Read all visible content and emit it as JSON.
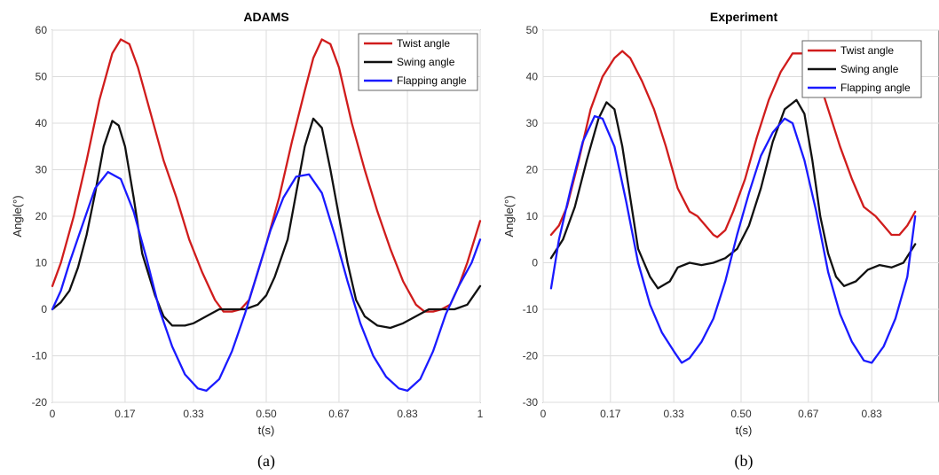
{
  "chart_data": [
    {
      "type": "line",
      "panel_label": "(a)",
      "title": "ADAMS",
      "xlabel": "t(s)",
      "ylabel": "Angle(°)",
      "xlim": [
        0,
        1
      ],
      "ylim": [
        -20,
        60
      ],
      "xticks": [
        0,
        0.17,
        0.33,
        0.5,
        0.67,
        0.83,
        1
      ],
      "xtick_labels": [
        "0",
        "0.17",
        "0.33",
        "0.50",
        "0.67",
        "0.83",
        "1"
      ],
      "yticks": [
        -20,
        -10,
        0,
        10,
        20,
        30,
        40,
        50,
        60
      ],
      "ytick_labels": [
        "-20",
        "-10",
        "0",
        "10",
        "20",
        "30",
        "40",
        "50",
        "60"
      ],
      "grid": true,
      "legend_position": "top-right",
      "series": [
        {
          "name": "Twist angle",
          "color": "#d01c1c",
          "points": [
            [
              0,
              5
            ],
            [
              0.02,
              10
            ],
            [
              0.05,
              20
            ],
            [
              0.08,
              32
            ],
            [
              0.11,
              45
            ],
            [
              0.14,
              55
            ],
            [
              0.16,
              58
            ],
            [
              0.18,
              57
            ],
            [
              0.2,
              52
            ],
            [
              0.23,
              42
            ],
            [
              0.26,
              32
            ],
            [
              0.29,
              24
            ],
            [
              0.32,
              15
            ],
            [
              0.35,
              8
            ],
            [
              0.38,
              2
            ],
            [
              0.4,
              -0.5
            ],
            [
              0.42,
              -0.5
            ],
            [
              0.44,
              0
            ],
            [
              0.46,
              2
            ],
            [
              0.48,
              8
            ],
            [
              0.5,
              14
            ],
            [
              0.53,
              24
            ],
            [
              0.56,
              36
            ],
            [
              0.59,
              47
            ],
            [
              0.61,
              54
            ],
            [
              0.63,
              58
            ],
            [
              0.65,
              57
            ],
            [
              0.67,
              52
            ],
            [
              0.7,
              40
            ],
            [
              0.73,
              30
            ],
            [
              0.76,
              21
            ],
            [
              0.79,
              13
            ],
            [
              0.82,
              6
            ],
            [
              0.85,
              1
            ],
            [
              0.87,
              -0.5
            ],
            [
              0.89,
              -0.5
            ],
            [
              0.91,
              0
            ],
            [
              0.93,
              1
            ],
            [
              0.95,
              5
            ],
            [
              0.97,
              10
            ],
            [
              1,
              19
            ]
          ]
        },
        {
          "name": "Swing angle",
          "color": "#111111",
          "points": [
            [
              0,
              0
            ],
            [
              0.02,
              1.5
            ],
            [
              0.04,
              4
            ],
            [
              0.06,
              9
            ],
            [
              0.08,
              16
            ],
            [
              0.1,
              25
            ],
            [
              0.12,
              35
            ],
            [
              0.14,
              40.5
            ],
            [
              0.155,
              39.5
            ],
            [
              0.17,
              35
            ],
            [
              0.19,
              24
            ],
            [
              0.21,
              12
            ],
            [
              0.24,
              3
            ],
            [
              0.26,
              -1.5
            ],
            [
              0.28,
              -3.5
            ],
            [
              0.31,
              -3.5
            ],
            [
              0.33,
              -3
            ],
            [
              0.35,
              -2
            ],
            [
              0.37,
              -1
            ],
            [
              0.39,
              0
            ],
            [
              0.42,
              0
            ],
            [
              0.45,
              0
            ],
            [
              0.48,
              1
            ],
            [
              0.5,
              3
            ],
            [
              0.52,
              7
            ],
            [
              0.55,
              15
            ],
            [
              0.57,
              25
            ],
            [
              0.59,
              35
            ],
            [
              0.61,
              41
            ],
            [
              0.63,
              39
            ],
            [
              0.65,
              30
            ],
            [
              0.67,
              20
            ],
            [
              0.69,
              10
            ],
            [
              0.71,
              2
            ],
            [
              0.73,
              -1.5
            ],
            [
              0.76,
              -3.5
            ],
            [
              0.79,
              -4
            ],
            [
              0.82,
              -3
            ],
            [
              0.85,
              -1.5
            ],
            [
              0.88,
              0
            ],
            [
              0.91,
              0
            ],
            [
              0.94,
              0
            ],
            [
              0.97,
              1
            ],
            [
              1,
              5
            ]
          ]
        },
        {
          "name": "Flapping angle",
          "color": "#1a1aff",
          "points": [
            [
              0,
              0
            ],
            [
              0.02,
              4
            ],
            [
              0.04,
              10
            ],
            [
              0.07,
              18
            ],
            [
              0.1,
              26
            ],
            [
              0.13,
              29.5
            ],
            [
              0.16,
              28
            ],
            [
              0.19,
              21
            ],
            [
              0.22,
              11
            ],
            [
              0.25,
              0
            ],
            [
              0.28,
              -8
            ],
            [
              0.31,
              -14
            ],
            [
              0.34,
              -17
            ],
            [
              0.36,
              -17.5
            ],
            [
              0.39,
              -15
            ],
            [
              0.42,
              -9
            ],
            [
              0.45,
              -1
            ],
            [
              0.48,
              8
            ],
            [
              0.51,
              17
            ],
            [
              0.54,
              24
            ],
            [
              0.57,
              28.5
            ],
            [
              0.6,
              29
            ],
            [
              0.63,
              25
            ],
            [
              0.66,
              16
            ],
            [
              0.69,
              6
            ],
            [
              0.72,
              -3
            ],
            [
              0.75,
              -10
            ],
            [
              0.78,
              -14.5
            ],
            [
              0.81,
              -17
            ],
            [
              0.83,
              -17.5
            ],
            [
              0.86,
              -15
            ],
            [
              0.89,
              -9
            ],
            [
              0.92,
              -1
            ],
            [
              0.95,
              5
            ],
            [
              0.98,
              10
            ],
            [
              1,
              15
            ]
          ]
        }
      ]
    },
    {
      "type": "line",
      "panel_label": "(b)",
      "title": "Experiment",
      "xlabel": "t(s)",
      "ylabel": "Angle(°)",
      "xlim": [
        0,
        1
      ],
      "ylim": [
        -30,
        50
      ],
      "xticks": [
        0,
        0.17,
        0.33,
        0.5,
        0.67,
        0.83
      ],
      "xtick_labels": [
        "0",
        "0.17",
        "0.33",
        "0.50",
        "0.67",
        "0.83"
      ],
      "yticks": [
        -30,
        -20,
        -10,
        0,
        10,
        20,
        30,
        40,
        50
      ],
      "ytick_labels": [
        "-30",
        "-20",
        "-10",
        "0",
        "10",
        "20",
        "30",
        "40",
        "50"
      ],
      "grid": true,
      "legend_position": "top-right",
      "series": [
        {
          "name": "Twist angle",
          "color": "#d01c1c",
          "points": [
            [
              0.02,
              6
            ],
            [
              0.04,
              8
            ],
            [
              0.06,
              12
            ],
            [
              0.09,
              22
            ],
            [
              0.12,
              33
            ],
            [
              0.15,
              40
            ],
            [
              0.18,
              44
            ],
            [
              0.2,
              45.5
            ],
            [
              0.22,
              44
            ],
            [
              0.25,
              39
            ],
            [
              0.28,
              33
            ],
            [
              0.31,
              25
            ],
            [
              0.34,
              16
            ],
            [
              0.37,
              11
            ],
            [
              0.39,
              10
            ],
            [
              0.41,
              8
            ],
            [
              0.43,
              6
            ],
            [
              0.44,
              5.5
            ],
            [
              0.46,
              7
            ],
            [
              0.48,
              11
            ],
            [
              0.51,
              18
            ],
            [
              0.54,
              27
            ],
            [
              0.57,
              35
            ],
            [
              0.6,
              41
            ],
            [
              0.63,
              45
            ],
            [
              0.66,
              45
            ],
            [
              0.69,
              41
            ],
            [
              0.72,
              33
            ],
            [
              0.75,
              25
            ],
            [
              0.78,
              18
            ],
            [
              0.81,
              12
            ],
            [
              0.84,
              10
            ],
            [
              0.86,
              8
            ],
            [
              0.88,
              6
            ],
            [
              0.9,
              6
            ],
            [
              0.92,
              8
            ],
            [
              0.94,
              11
            ]
          ]
        },
        {
          "name": "Swing angle",
          "color": "#111111",
          "points": [
            [
              0.02,
              1
            ],
            [
              0.05,
              5
            ],
            [
              0.08,
              12
            ],
            [
              0.11,
              22
            ],
            [
              0.14,
              31
            ],
            [
              0.16,
              34.5
            ],
            [
              0.18,
              33
            ],
            [
              0.2,
              25
            ],
            [
              0.22,
              14
            ],
            [
              0.24,
              3
            ],
            [
              0.27,
              -3
            ],
            [
              0.29,
              -5.5
            ],
            [
              0.32,
              -4
            ],
            [
              0.34,
              -1
            ],
            [
              0.37,
              0
            ],
            [
              0.4,
              -0.5
            ],
            [
              0.43,
              0
            ],
            [
              0.46,
              1
            ],
            [
              0.49,
              3
            ],
            [
              0.52,
              8
            ],
            [
              0.55,
              16
            ],
            [
              0.58,
              26
            ],
            [
              0.61,
              33
            ],
            [
              0.64,
              35
            ],
            [
              0.66,
              32
            ],
            [
              0.68,
              22
            ],
            [
              0.7,
              10
            ],
            [
              0.72,
              2
            ],
            [
              0.74,
              -3
            ],
            [
              0.76,
              -5
            ],
            [
              0.79,
              -4
            ],
            [
              0.82,
              -1.5
            ],
            [
              0.85,
              -0.5
            ],
            [
              0.88,
              -1
            ],
            [
              0.91,
              0
            ],
            [
              0.94,
              4
            ]
          ]
        },
        {
          "name": "Flapping angle",
          "color": "#1a1aff",
          "points": [
            [
              0.02,
              -5.5
            ],
            [
              0.04,
              5
            ],
            [
              0.07,
              16
            ],
            [
              0.1,
              26
            ],
            [
              0.13,
              31.5
            ],
            [
              0.15,
              31
            ],
            [
              0.18,
              25
            ],
            [
              0.21,
              13
            ],
            [
              0.24,
              0
            ],
            [
              0.27,
              -9
            ],
            [
              0.3,
              -15
            ],
            [
              0.33,
              -19
            ],
            [
              0.35,
              -21.5
            ],
            [
              0.37,
              -20.5
            ],
            [
              0.4,
              -17
            ],
            [
              0.43,
              -12
            ],
            [
              0.46,
              -4
            ],
            [
              0.49,
              6
            ],
            [
              0.52,
              15
            ],
            [
              0.55,
              23
            ],
            [
              0.58,
              28
            ],
            [
              0.61,
              31
            ],
            [
              0.63,
              30
            ],
            [
              0.66,
              22
            ],
            [
              0.69,
              11
            ],
            [
              0.72,
              -2
            ],
            [
              0.75,
              -11
            ],
            [
              0.78,
              -17
            ],
            [
              0.81,
              -21
            ],
            [
              0.83,
              -21.5
            ],
            [
              0.86,
              -18
            ],
            [
              0.89,
              -12
            ],
            [
              0.92,
              -3
            ],
            [
              0.94,
              10
            ]
          ]
        }
      ]
    }
  ]
}
